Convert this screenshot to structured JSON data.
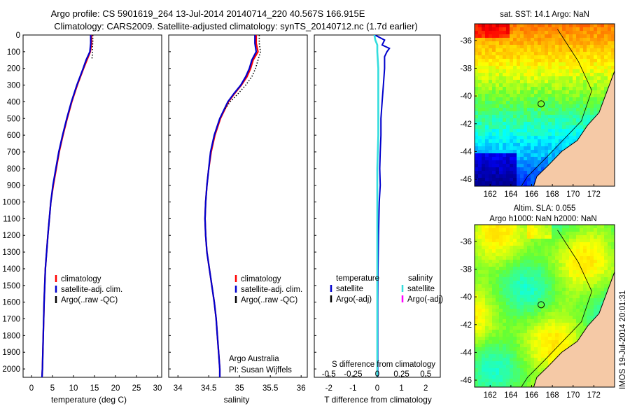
{
  "title_line1": "Argo profile: CS 5901619_264 13-Jul-2014 20140714_220 40.567S 166.915E",
  "title_line2": "Climatology: CARS2009. Satellite-adjusted climatology: synTS_20140712.nc (1.7d earlier)",
  "side_stamp": "IMOS 19-Jul-2014 20:01:31",
  "colors": {
    "climatology": "#ff0000",
    "satellite": "#0000cc",
    "argo": "#000000",
    "salinity_sat": "#33dddd",
    "argo_adj_sal": "#ff00ff",
    "land": "#f5c9a6"
  },
  "chart_data": [
    {
      "type": "line",
      "xlabel": "temperature (deg C)",
      "xlim": [
        -2,
        31
      ],
      "xticks": [
        0,
        5,
        10,
        15,
        20,
        25,
        30
      ],
      "ylim": [
        2050,
        0
      ],
      "yticks": [
        0,
        100,
        200,
        300,
        400,
        500,
        600,
        700,
        800,
        900,
        1000,
        1100,
        1200,
        1300,
        1400,
        1500,
        1600,
        1700,
        1800,
        1900,
        2000
      ],
      "legend": [
        "climatology",
        "satellite-adj. clim.",
        "Argo(..raw -QC)"
      ],
      "legend_position": "lower-middle",
      "series": [
        {
          "name": "climatology",
          "color": "#ff0000",
          "depth": [
            0,
            50,
            100,
            150,
            200,
            300,
            400,
            500,
            600,
            700,
            800,
            900,
            1000,
            1200,
            1400,
            1600,
            1800,
            2000,
            2050
          ],
          "values": [
            14.3,
            14.3,
            14.0,
            13.2,
            12.4,
            10.9,
            9.6,
            8.5,
            7.5,
            6.6,
            5.9,
            5.2,
            4.6,
            3.9,
            3.3,
            3.0,
            2.8,
            2.6,
            2.5
          ]
        },
        {
          "name": "satellite-adj. clim.",
          "color": "#0000cc",
          "depth": [
            0,
            50,
            100,
            150,
            200,
            300,
            400,
            500,
            600,
            700,
            800,
            900,
            1000,
            1200,
            1400,
            1600,
            1800,
            2000,
            2050
          ],
          "values": [
            14.1,
            14.1,
            13.9,
            13.0,
            12.3,
            10.8,
            9.5,
            8.4,
            7.4,
            6.5,
            5.8,
            5.1,
            4.6,
            3.9,
            3.3,
            3.0,
            2.8,
            2.6,
            2.5
          ]
        },
        {
          "name": "Argo(..raw -QC)",
          "color": "#000000",
          "depth": [
            0,
            40,
            80,
            120,
            140
          ],
          "values": [
            14.6,
            14.6,
            14.5,
            14.5,
            14.4
          ]
        }
      ]
    },
    {
      "type": "line",
      "xlabel": "salinity",
      "xlim": [
        33.85,
        36.1
      ],
      "xticks": [
        34,
        34.5,
        35,
        35.5,
        36
      ],
      "xticklabels": [
        "34",
        "34.5",
        "35",
        "35.5",
        "36"
      ],
      "ylim": [
        2050,
        0
      ],
      "legend": [
        "climatology",
        "satellite-adj. clim.",
        "Argo(..raw -QC)"
      ],
      "legend_position": "lower-middle",
      "annotations": [
        "Argo Australia",
        "PI: Susan Wijffels"
      ],
      "series": [
        {
          "name": "climatology",
          "color": "#ff0000",
          "depth": [
            0,
            50,
            100,
            150,
            200,
            250,
            300,
            350,
            400,
            500,
            600,
            700,
            800,
            900,
            1000,
            1100,
            1200,
            1300,
            1400,
            1500,
            1600,
            1700,
            1800,
            1900,
            2000,
            2050
          ],
          "values": [
            35.27,
            35.27,
            35.3,
            35.22,
            35.18,
            35.12,
            35.03,
            34.92,
            34.82,
            34.69,
            34.6,
            34.54,
            34.5,
            34.47,
            34.45,
            34.44,
            34.45,
            34.47,
            34.51,
            34.55,
            34.59,
            34.62,
            34.64,
            34.66,
            34.68,
            34.68
          ]
        },
        {
          "name": "satellite-adj. clim.",
          "color": "#0000cc",
          "depth": [
            0,
            50,
            100,
            150,
            200,
            250,
            300,
            350,
            400,
            500,
            600,
            700,
            800,
            900,
            1000,
            1100,
            1200,
            1300,
            1400,
            1500,
            1600,
            1700,
            1800,
            1900,
            2000,
            2050
          ],
          "values": [
            35.25,
            35.25,
            35.27,
            35.2,
            35.16,
            35.1,
            35.02,
            34.91,
            34.81,
            34.68,
            34.59,
            34.53,
            34.5,
            34.47,
            34.45,
            34.44,
            34.45,
            34.47,
            34.51,
            34.55,
            34.59,
            34.62,
            34.64,
            34.66,
            34.68,
            34.68
          ]
        },
        {
          "name": "Argo(..raw -QC)",
          "color": "#000000",
          "depth": [
            0,
            50,
            100,
            150,
            200,
            250,
            300,
            350,
            400,
            450
          ],
          "values": [
            35.32,
            35.32,
            35.34,
            35.3,
            35.26,
            35.2,
            35.1,
            34.98,
            34.85,
            34.75
          ]
        }
      ]
    },
    {
      "type": "line",
      "xlabel": "T difference from climatology",
      "xlim": [
        -2.6,
        2.6
      ],
      "xticks": [
        -2,
        -1,
        0,
        1,
        2
      ],
      "top_xlabel": "S difference from climatology",
      "top_xticks": [
        -0.5,
        -0.25,
        0,
        0.25,
        0.5
      ],
      "ylim": [
        2050,
        0
      ],
      "legend_temperature_title": "temperature",
      "legend_salinity_title": "salinity",
      "legend_temperature": [
        "satellite",
        "Argo(-adj)"
      ],
      "legend_salinity": [
        "satellite",
        "Argo(-adj)"
      ],
      "legend_position": "lower-middle",
      "series": [
        {
          "name": "temperature satellite",
          "color": "#0000cc",
          "depth": [
            0,
            30,
            60,
            80,
            100,
            130,
            160,
            200,
            300,
            400,
            500,
            600,
            700,
            800,
            900,
            1000,
            1200,
            1400,
            1600,
            1800,
            2000,
            2050
          ],
          "values": [
            -0.1,
            0.3,
            0.2,
            0.5,
            0.4,
            0.3,
            0.3,
            0.3,
            0.25,
            0.2,
            0.15,
            0.15,
            0.12,
            0.1,
            0.12,
            0.08,
            0.05,
            0.03,
            0.02,
            0.02,
            0.02,
            0.02
          ]
        },
        {
          "name": "salinity satellite",
          "color": "#33dddd",
          "depth": [
            0,
            30,
            60,
            100,
            200,
            300,
            400,
            600,
            800,
            1000,
            1200,
            1400,
            1600,
            1800,
            2000,
            2050
          ],
          "values": [
            -0.03,
            -0.02,
            0.0,
            0.0,
            0.01,
            0.01,
            0.01,
            0.01,
            0.0,
            0.0,
            0.0,
            0.0,
            0.0,
            0.0,
            0.0,
            0.0
          ]
        }
      ]
    },
    {
      "type": "heatmap",
      "title": "sat. SST: 14.1  Argo: NaN",
      "xticks": [
        162,
        164,
        166,
        168,
        170,
        172
      ],
      "yticks": [
        -36,
        -38,
        -40,
        -42,
        -44,
        -46
      ],
      "xlim": [
        160.5,
        174
      ],
      "ylim": [
        -46.5,
        -34.8
      ],
      "marker": {
        "lon": 166.915,
        "lat": -40.567
      }
    },
    {
      "type": "heatmap",
      "title_line1": "Altim. SLA: 0.055",
      "title_line2": "Argo h1000: NaN h2000: NaN",
      "xticks": [
        162,
        164,
        166,
        168,
        170,
        172
      ],
      "yticks": [
        -36,
        -38,
        -40,
        -42,
        -44,
        -46
      ],
      "xlim": [
        160.5,
        174
      ],
      "ylim": [
        -46.5,
        -34.8
      ],
      "marker": {
        "lon": 166.915,
        "lat": -40.567
      }
    }
  ]
}
